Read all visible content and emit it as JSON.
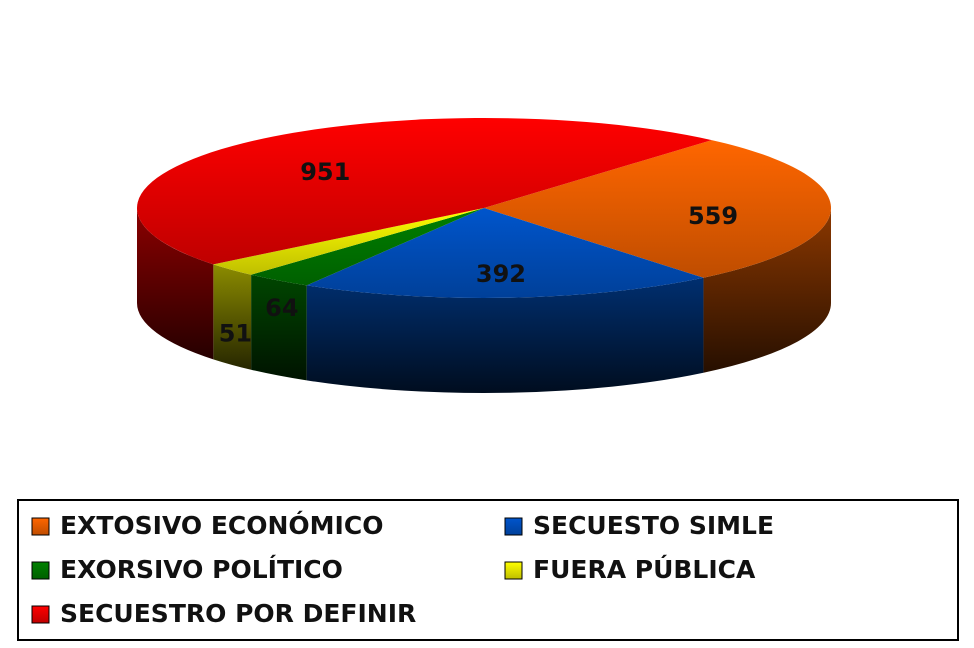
{
  "chart_data": {
    "type": "pie3d",
    "categories": [
      "EXTOSIVO ECONÓMICO",
      "SECUESTO SIMLE",
      "EXORSIVO POLÍTICO",
      "FUERA PÚBLICA",
      "SECUESTRO POR DEFINIR"
    ],
    "values": [
      559,
      392,
      64,
      51,
      951
    ],
    "colors": [
      "#ff6600",
      "#0055cc",
      "#008000",
      "#ffff00",
      "#ff0000"
    ],
    "legend": "bottom"
  }
}
